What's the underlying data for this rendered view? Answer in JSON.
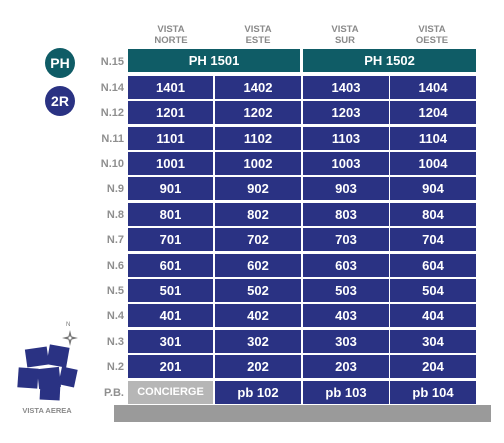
{
  "views": [
    {
      "line1": "VISTA",
      "line2": "NORTE"
    },
    {
      "line1": "VISTA",
      "line2": "ESTE"
    },
    {
      "line1": "VISTA",
      "line2": "SUR"
    },
    {
      "line1": "VISTA",
      "line2": "OESTE"
    }
  ],
  "badges": {
    "ph": "PH",
    "r": "2R"
  },
  "penthouse": {
    "floor": "N.15",
    "units": [
      "PH 1501",
      "PH 1502"
    ]
  },
  "floors": [
    {
      "label": "N.14",
      "units": [
        "1401",
        "1402",
        "1403",
        "1404"
      ]
    },
    {
      "label": "N.12",
      "units": [
        "1201",
        "1202",
        "1203",
        "1204"
      ]
    },
    {
      "label": "N.11",
      "units": [
        "1101",
        "1102",
        "1103",
        "1104"
      ]
    },
    {
      "label": "N.10",
      "units": [
        "1001",
        "1002",
        "1003",
        "1004"
      ]
    },
    {
      "label": "N.9",
      "units": [
        "901",
        "902",
        "903",
        "904"
      ]
    },
    {
      "label": "N.8",
      "units": [
        "801",
        "802",
        "803",
        "804"
      ]
    },
    {
      "label": "N.7",
      "units": [
        "701",
        "702",
        "703",
        "704"
      ]
    },
    {
      "label": "N.6",
      "units": [
        "601",
        "602",
        "603",
        "604"
      ]
    },
    {
      "label": "N.5",
      "units": [
        "501",
        "502",
        "503",
        "504"
      ]
    },
    {
      "label": "N.4",
      "units": [
        "401",
        "402",
        "403",
        "404"
      ]
    },
    {
      "label": "N.3",
      "units": [
        "301",
        "302",
        "303",
        "304"
      ]
    },
    {
      "label": "N.2",
      "units": [
        "201",
        "202",
        "203",
        "204"
      ]
    },
    {
      "label": "P.B.",
      "units": [
        "CONCIERGE",
        "pb 102",
        "pb 103",
        "pb 104"
      ]
    }
  ],
  "aerial": {
    "label": "VISTA AEREA",
    "compass": "N"
  },
  "colors": {
    "unit": "#2a3283",
    "penthouse": "#0f5c66",
    "concierge": "#b6b6b6",
    "label": "#8f8f8f"
  }
}
